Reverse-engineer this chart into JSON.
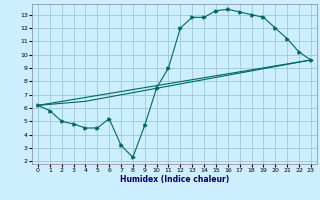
{
  "title": "",
  "xlabel": "Humidex (Indice chaleur)",
  "bg_color": "#cceeff",
  "grid_color": "#99cccc",
  "line_color": "#006666",
  "xlim": [
    -0.5,
    23.5
  ],
  "ylim": [
    1.8,
    13.8
  ],
  "xticks": [
    0,
    1,
    2,
    3,
    4,
    5,
    6,
    7,
    8,
    9,
    10,
    11,
    12,
    13,
    14,
    15,
    16,
    17,
    18,
    19,
    20,
    21,
    22,
    23
  ],
  "yticks": [
    2,
    3,
    4,
    5,
    6,
    7,
    8,
    9,
    10,
    11,
    12,
    13
  ],
  "line1_x": [
    0,
    1,
    2,
    3,
    4,
    5,
    6,
    7,
    8,
    9,
    10,
    11,
    12,
    13,
    14,
    15,
    16,
    17,
    18,
    19,
    20,
    21,
    22,
    23
  ],
  "line1_y": [
    6.2,
    5.8,
    5.0,
    4.8,
    4.5,
    4.5,
    5.2,
    3.2,
    2.3,
    4.7,
    7.5,
    9.0,
    12.0,
    12.8,
    12.8,
    13.3,
    13.4,
    13.2,
    13.0,
    12.8,
    12.0,
    11.2,
    10.2,
    9.6
  ],
  "line2_x": [
    0,
    23
  ],
  "line2_y": [
    6.2,
    9.6
  ],
  "line3_x": [
    0,
    4,
    23
  ],
  "line3_y": [
    6.2,
    6.5,
    9.6
  ],
  "xlabel_fontsize": 5.5,
  "xlabel_color": "#000066",
  "tick_fontsize": 4.5
}
